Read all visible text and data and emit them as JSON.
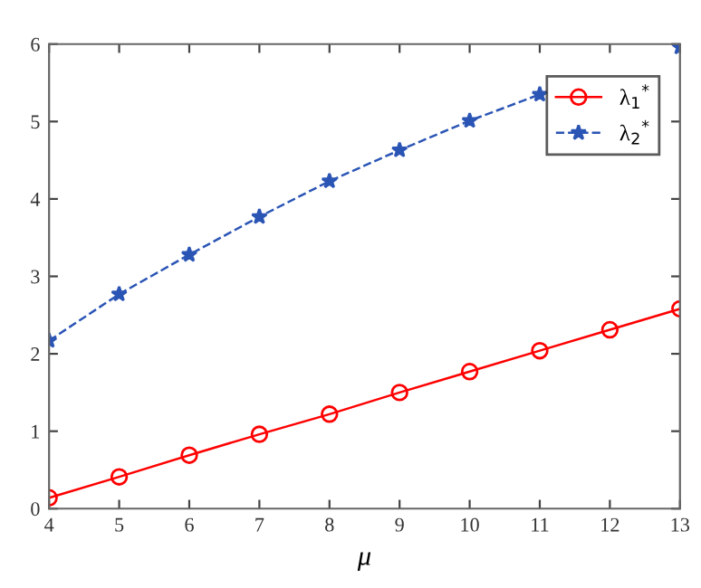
{
  "chart_data": {
    "type": "line",
    "xlabel": "μ",
    "x": [
      4,
      5,
      6,
      7,
      8,
      9,
      10,
      11,
      12,
      13
    ],
    "series": [
      {
        "name": "λ$_{1}$$^{*}$",
        "color": "#ff0000",
        "marker": "circle",
        "line_style": "solid",
        "values": [
          0.14,
          0.41,
          0.69,
          0.96,
          1.22,
          1.5,
          1.77,
          2.04,
          2.31,
          2.58
        ]
      },
      {
        "name": "λ$_{2}$$^{*}$",
        "color": "#2b55b5",
        "marker": "star",
        "line_style": "dashed",
        "values": [
          2.17,
          2.77,
          3.28,
          3.77,
          4.23,
          4.63,
          5.01,
          5.35,
          null,
          5.96
        ]
      }
    ],
    "xlim": [
      4,
      13
    ],
    "ylim": [
      0,
      6
    ],
    "xticks": [
      4,
      5,
      6,
      7,
      8,
      9,
      10,
      11,
      12,
      13
    ],
    "yticks": [
      0,
      1,
      2,
      3,
      4,
      5,
      6
    ],
    "grid": false,
    "legend": "top right"
  }
}
